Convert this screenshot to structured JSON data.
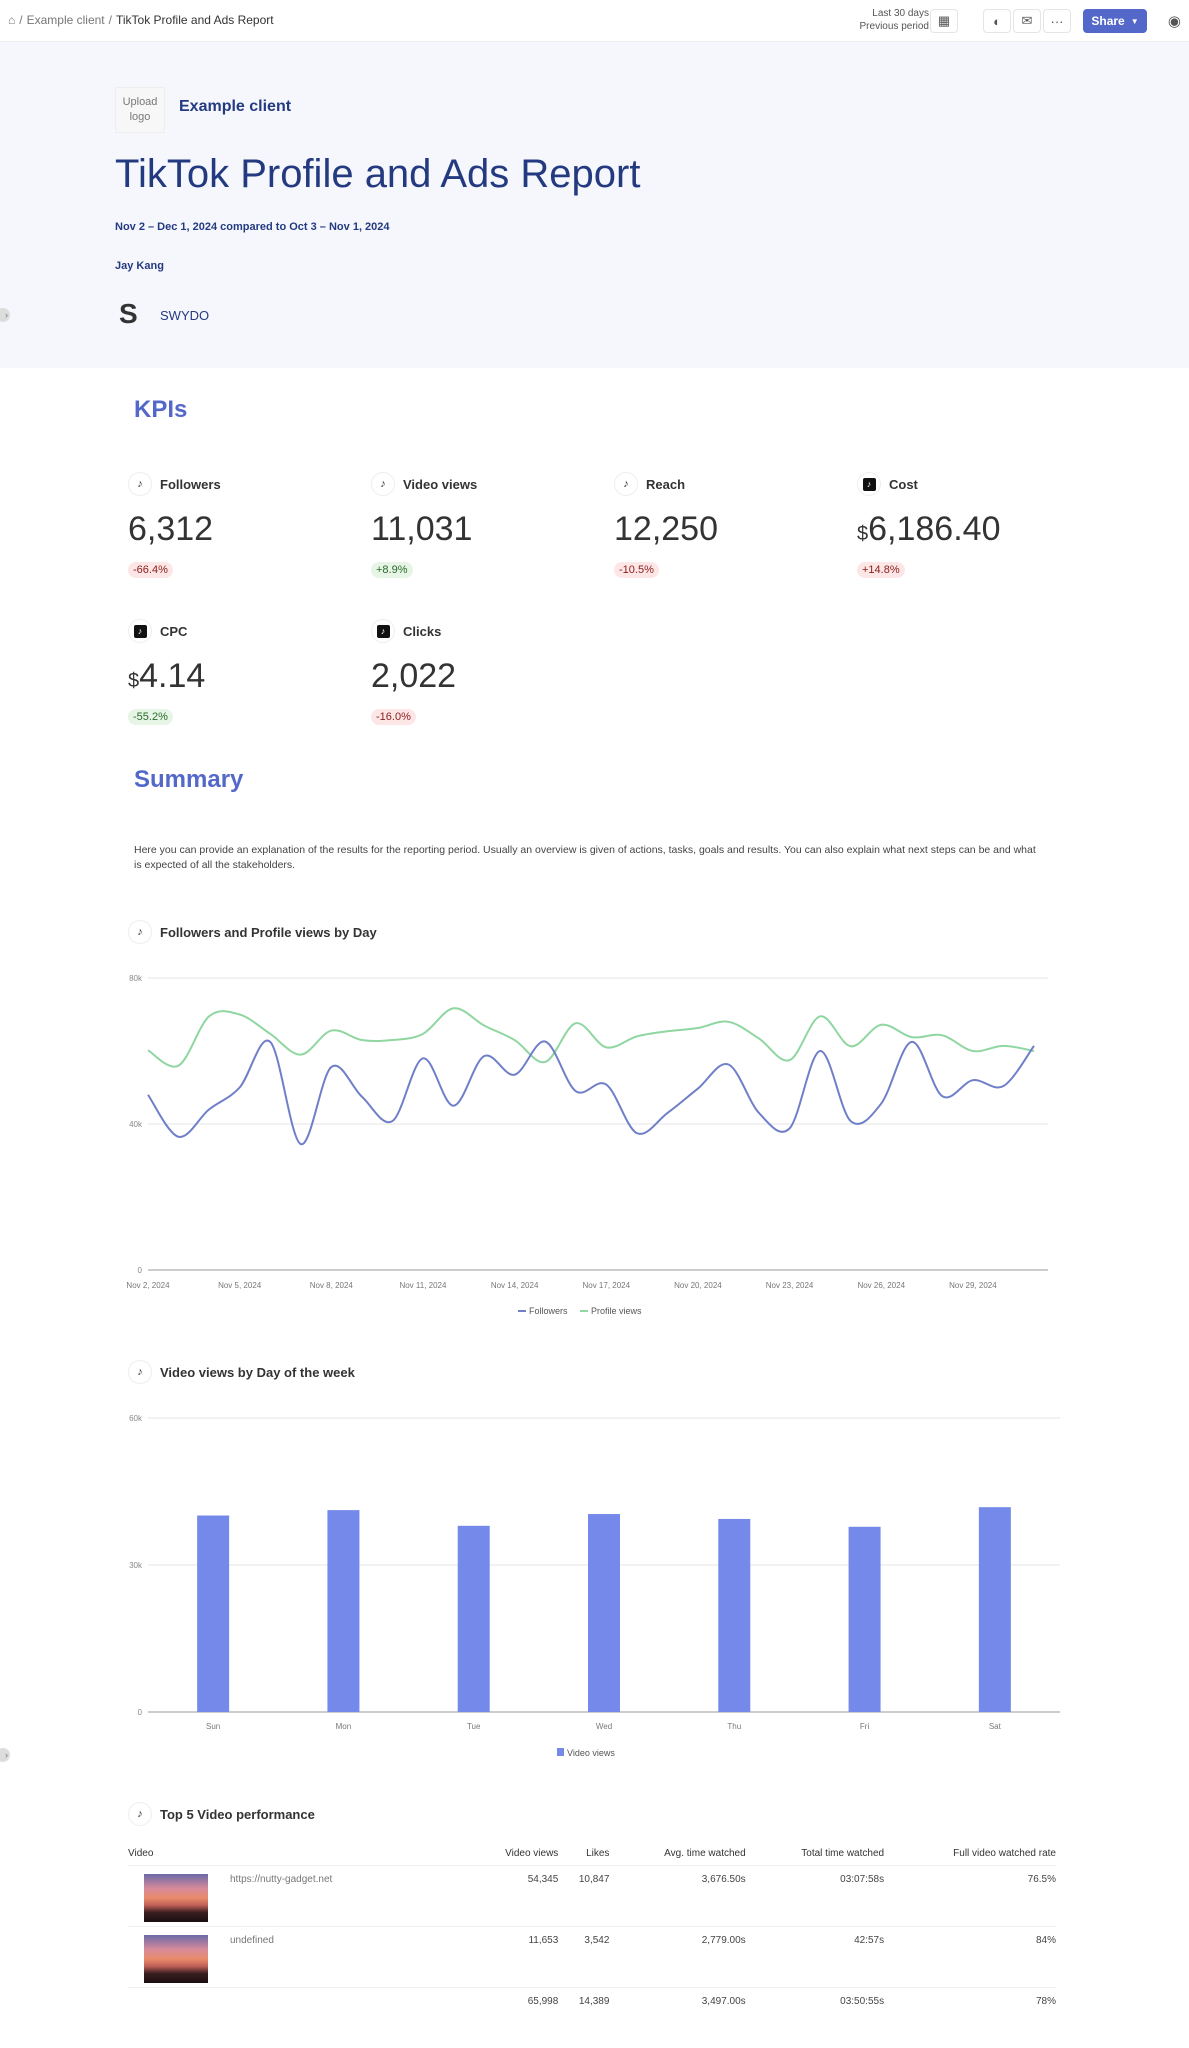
{
  "topbar": {
    "breadcrumb": [
      "Example client",
      "TikTok Profile and Ads Report"
    ],
    "period_line1": "Last 30 days",
    "period_line2": "Previous period",
    "share_label": "Share",
    "icons": [
      "home-icon",
      "calendar-icon",
      "palette-icon",
      "mail-schedule-icon",
      "more-icon",
      "user-icon"
    ]
  },
  "header": {
    "upload_logo": "Upload logo",
    "client": "Example client",
    "title": "TikTok Profile and Ads Report",
    "dates": "Nov 2 – Dec 1, 2024  compared to Oct 3 – Nov 1, 2024",
    "author": "Jay Kang",
    "brand": "SWYDO"
  },
  "kpis": {
    "heading": "KPIs",
    "items": [
      {
        "label": "Followers",
        "value": "6,312",
        "prefix": "",
        "change": "-66.4%",
        "trend": "neg",
        "icon": "tiktok"
      },
      {
        "label": "Video views",
        "value": "11,031",
        "prefix": "",
        "change": "+8.9%",
        "trend": "pos",
        "icon": "tiktok"
      },
      {
        "label": "Reach",
        "value": "12,250",
        "prefix": "",
        "change": "-10.5%",
        "trend": "neg",
        "icon": "tiktok"
      },
      {
        "label": "Cost",
        "value": "6,186.40",
        "prefix": "$",
        "change": "+14.8%",
        "trend": "neg",
        "icon": "tiktok-ads"
      },
      {
        "label": "CPC",
        "value": "4.14",
        "prefix": "$",
        "change": "-55.2%",
        "trend": "pos",
        "icon": "tiktok-ads"
      },
      {
        "label": "Clicks",
        "value": "2,022",
        "prefix": "",
        "change": "-16.0%",
        "trend": "neg",
        "icon": "tiktok-ads"
      }
    ]
  },
  "summary": {
    "heading": "Summary",
    "text": "Here you can provide an explanation of the results for the reporting period. Usually an overview is given of actions, tasks, goals and results. You can also explain what next steps can be and what is expected of all the stakeholders."
  },
  "chart_data": [
    {
      "type": "line",
      "title": "Followers and Profile views by Day",
      "ylim": [
        0,
        80000
      ],
      "yticks": [
        "0",
        "40k",
        "80k"
      ],
      "grid": true,
      "legend": "bottom",
      "x": [
        "Nov 2",
        "Nov 3",
        "Nov 4",
        "Nov 5",
        "Nov 6",
        "Nov 7",
        "Nov 8",
        "Nov 9",
        "Nov 10",
        "Nov 11",
        "Nov 12",
        "Nov 13",
        "Nov 14",
        "Nov 15",
        "Nov 16",
        "Nov 17",
        "Nov 18",
        "Nov 19",
        "Nov 20",
        "Nov 21",
        "Nov 22",
        "Nov 23",
        "Nov 24",
        "Nov 25",
        "Nov 26",
        "Nov 27",
        "Nov 28",
        "Nov 29",
        "Nov 30",
        "Dec 1"
      ],
      "xtick_labels": [
        "Nov 2, 2024",
        "Nov 5, 2024",
        "Nov 8, 2024",
        "Nov 11, 2024",
        "Nov 14, 2024",
        "Nov 17, 2024",
        "Nov 20, 2024",
        "Nov 23, 2024",
        "Nov 26, 2024",
        "Nov 29, 2024"
      ],
      "series": [
        {
          "name": "Followers",
          "color": "#6f7fc8",
          "values": [
            48000,
            36500,
            44000,
            50000,
            62500,
            34500,
            55600,
            47500,
            40800,
            58000,
            45000,
            58600,
            53500,
            62600,
            49000,
            50800,
            37500,
            43000,
            49700,
            56300,
            43000,
            38800,
            60000,
            40800,
            45600,
            62500,
            47600,
            52000,
            50400,
            61400
          ]
        },
        {
          "name": "Profile views",
          "color": "#8fd6a0",
          "values": [
            60200,
            56000,
            69500,
            70000,
            64700,
            59000,
            65600,
            63000,
            63000,
            64700,
            71700,
            67000,
            63000,
            57000,
            67600,
            61000,
            64000,
            65400,
            66300,
            68000,
            63400,
            57500,
            69500,
            61300,
            67200,
            63800,
            64300,
            60000,
            61400,
            60000
          ]
        }
      ]
    },
    {
      "type": "bar",
      "title": "Video views by Day of the week",
      "ylim": [
        0,
        60000
      ],
      "yticks": [
        "0",
        "30k",
        "60k"
      ],
      "grid": true,
      "legend": "bottom",
      "categories": [
        "Sun",
        "Mon",
        "Tue",
        "Wed",
        "Thu",
        "Fri",
        "Sat"
      ],
      "series": [
        {
          "name": "Video views",
          "color": "#7489ea",
          "values": [
            40100,
            41200,
            38000,
            40400,
            39400,
            37800,
            41800
          ]
        }
      ]
    }
  ],
  "table": {
    "title": "Top 5 Video performance",
    "headers": [
      "Video",
      "Video views",
      "Likes",
      "Avg. time watched",
      "Total time watched",
      "Full video watched rate"
    ],
    "rows": [
      [
        "https://nutty-gadget.net",
        "54,345",
        "10,847",
        "3,676.50s",
        "03:07:58s",
        "76.5%"
      ],
      [
        "undefined",
        "11,653",
        "3,542",
        "2,779.00s",
        "42:57s",
        "84%"
      ]
    ],
    "totals": [
      "",
      "65,998",
      "14,389",
      "3,497.00s",
      "03:50:55s",
      "78%"
    ]
  }
}
